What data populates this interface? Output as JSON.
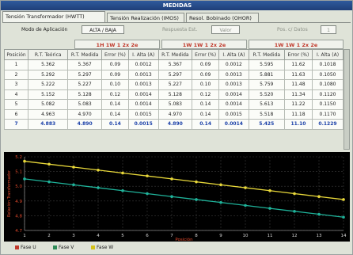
{
  "window": {
    "title": "MEDIDAS"
  },
  "tabs": [
    {
      "label": "Tensión Transformador (HWTT)"
    },
    {
      "label": "Tensión Realización (IMOS)"
    },
    {
      "label": "Resol. Bobinado (OHOR)"
    }
  ],
  "mode": {
    "label": "Modo de Aplicación",
    "value": "ALTA / BAJA",
    "label2": "Respuesta Est.",
    "value2": "Valor",
    "label3": "Pos. c/ Datos",
    "value3": "1"
  },
  "groups": [
    "1H 1W 1 2x 2e",
    "1W 1W 1 2x 2e",
    "1W 1W 1 2x 2e"
  ],
  "table": {
    "headers": [
      "Posición",
      "R.T. Teórica",
      "R.T. Medida",
      "Error (%)",
      "I. Alta (A)",
      "R.T. Medida",
      "Error (%)",
      "I. Alta (A)",
      "R.T. Medida",
      "Error (%)",
      "I. Alta (A)"
    ],
    "rows": [
      [
        "1",
        "5.362",
        "5.367",
        "0.09",
        "0.0012",
        "5.367",
        "0.09",
        "0.0012",
        "5.595",
        "11.62",
        "0.1018"
      ],
      [
        "2",
        "5.292",
        "5.297",
        "0.09",
        "0.0013",
        "5.297",
        "0.09",
        "0.0013",
        "5.881",
        "11.63",
        "0.1050"
      ],
      [
        "3",
        "5.222",
        "5.227",
        "0.10",
        "0.0013",
        "5.227",
        "0.10",
        "0.0013",
        "5.759",
        "11.48",
        "0.1080"
      ],
      [
        "4",
        "5.152",
        "5.128",
        "0.12",
        "0.0014",
        "5.128",
        "0.12",
        "0.0014",
        "5.520",
        "11.34",
        "0.1120"
      ],
      [
        "5",
        "5.082",
        "5.083",
        "0.14",
        "0.0014",
        "5.083",
        "0.14",
        "0.0014",
        "5.613",
        "11.22",
        "0.1150"
      ],
      [
        "6",
        "4.963",
        "4.970",
        "0.14",
        "0.0015",
        "4.970",
        "0.14",
        "0.0015",
        "5.518",
        "11.18",
        "0.1170"
      ],
      [
        "7",
        "4.883",
        "4.890",
        "0.14",
        "0.0015",
        "4.890",
        "0.14",
        "0.0014",
        "5.425",
        "11.10",
        "0.1229"
      ]
    ]
  },
  "legend": [
    {
      "label": "Fase U",
      "color": "#c0392b"
    },
    {
      "label": "Fase V",
      "color": "#2e8b57"
    },
    {
      "label": "Fase W",
      "color": "#d4c21a"
    }
  ],
  "chart_data": {
    "type": "line",
    "xlabel": "Posición",
    "ylabel": "Relación Transformador",
    "x": [
      1,
      2,
      3,
      4,
      5,
      6,
      7,
      8,
      9,
      10,
      11,
      12,
      13,
      14
    ],
    "xlim": [
      1,
      14
    ],
    "ylim": [
      4.7,
      5.2
    ],
    "yticks": [
      4.7,
      4.8,
      4.9,
      5.0,
      5.1,
      5.2
    ],
    "grid": true,
    "series": [
      {
        "name": "Fase W",
        "color": "#e8d83a",
        "values": [
          5.17,
          5.15,
          5.13,
          5.11,
          5.09,
          5.07,
          5.05,
          5.03,
          5.01,
          4.99,
          4.97,
          4.95,
          4.93,
          4.91
        ]
      },
      {
        "name": "Fase V",
        "color": "#1fb39a",
        "values": [
          5.05,
          5.03,
          5.01,
          4.99,
          4.97,
          4.95,
          4.93,
          4.91,
          4.89,
          4.87,
          4.85,
          4.83,
          4.81,
          4.79
        ]
      }
    ]
  }
}
